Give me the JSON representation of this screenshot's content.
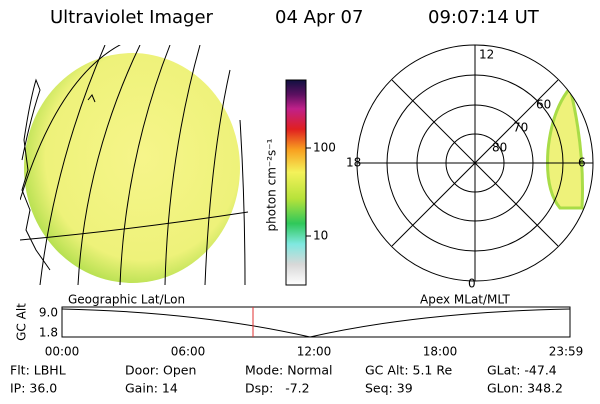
{
  "header": {
    "instrument": "Ultraviolet Imager",
    "date": "04 Apr 07",
    "time": "09:07:14 UT"
  },
  "colorbar": {
    "label": "photon cm⁻²s⁻¹",
    "ticks": [
      "100",
      "10"
    ]
  },
  "polar": {
    "mlt_labels": [
      "12",
      "18",
      "6",
      "0"
    ],
    "mlat_labels": [
      "60",
      "70",
      "80"
    ]
  },
  "timeline": {
    "left_title": "Geographic Lat/Lon",
    "right_title": "Apex MLat/MLT",
    "y_label": "GC Alt",
    "y_ticks": [
      "9.0",
      "1.8"
    ],
    "x_ticks": [
      "00:00",
      "06:00",
      "12:00",
      "18:00",
      "23:59"
    ]
  },
  "footer": {
    "rows": [
      [
        "Flt: LBHL",
        "Door: Open",
        "Mode: Normal",
        "GC Alt: 5.1 Re",
        "GLat: -47.4"
      ],
      [
        "IP: 36.0",
        "Gain: 14",
        "Dsp:   -7.2",
        "Seq: 39",
        "GLon: 348.2"
      ]
    ]
  }
}
